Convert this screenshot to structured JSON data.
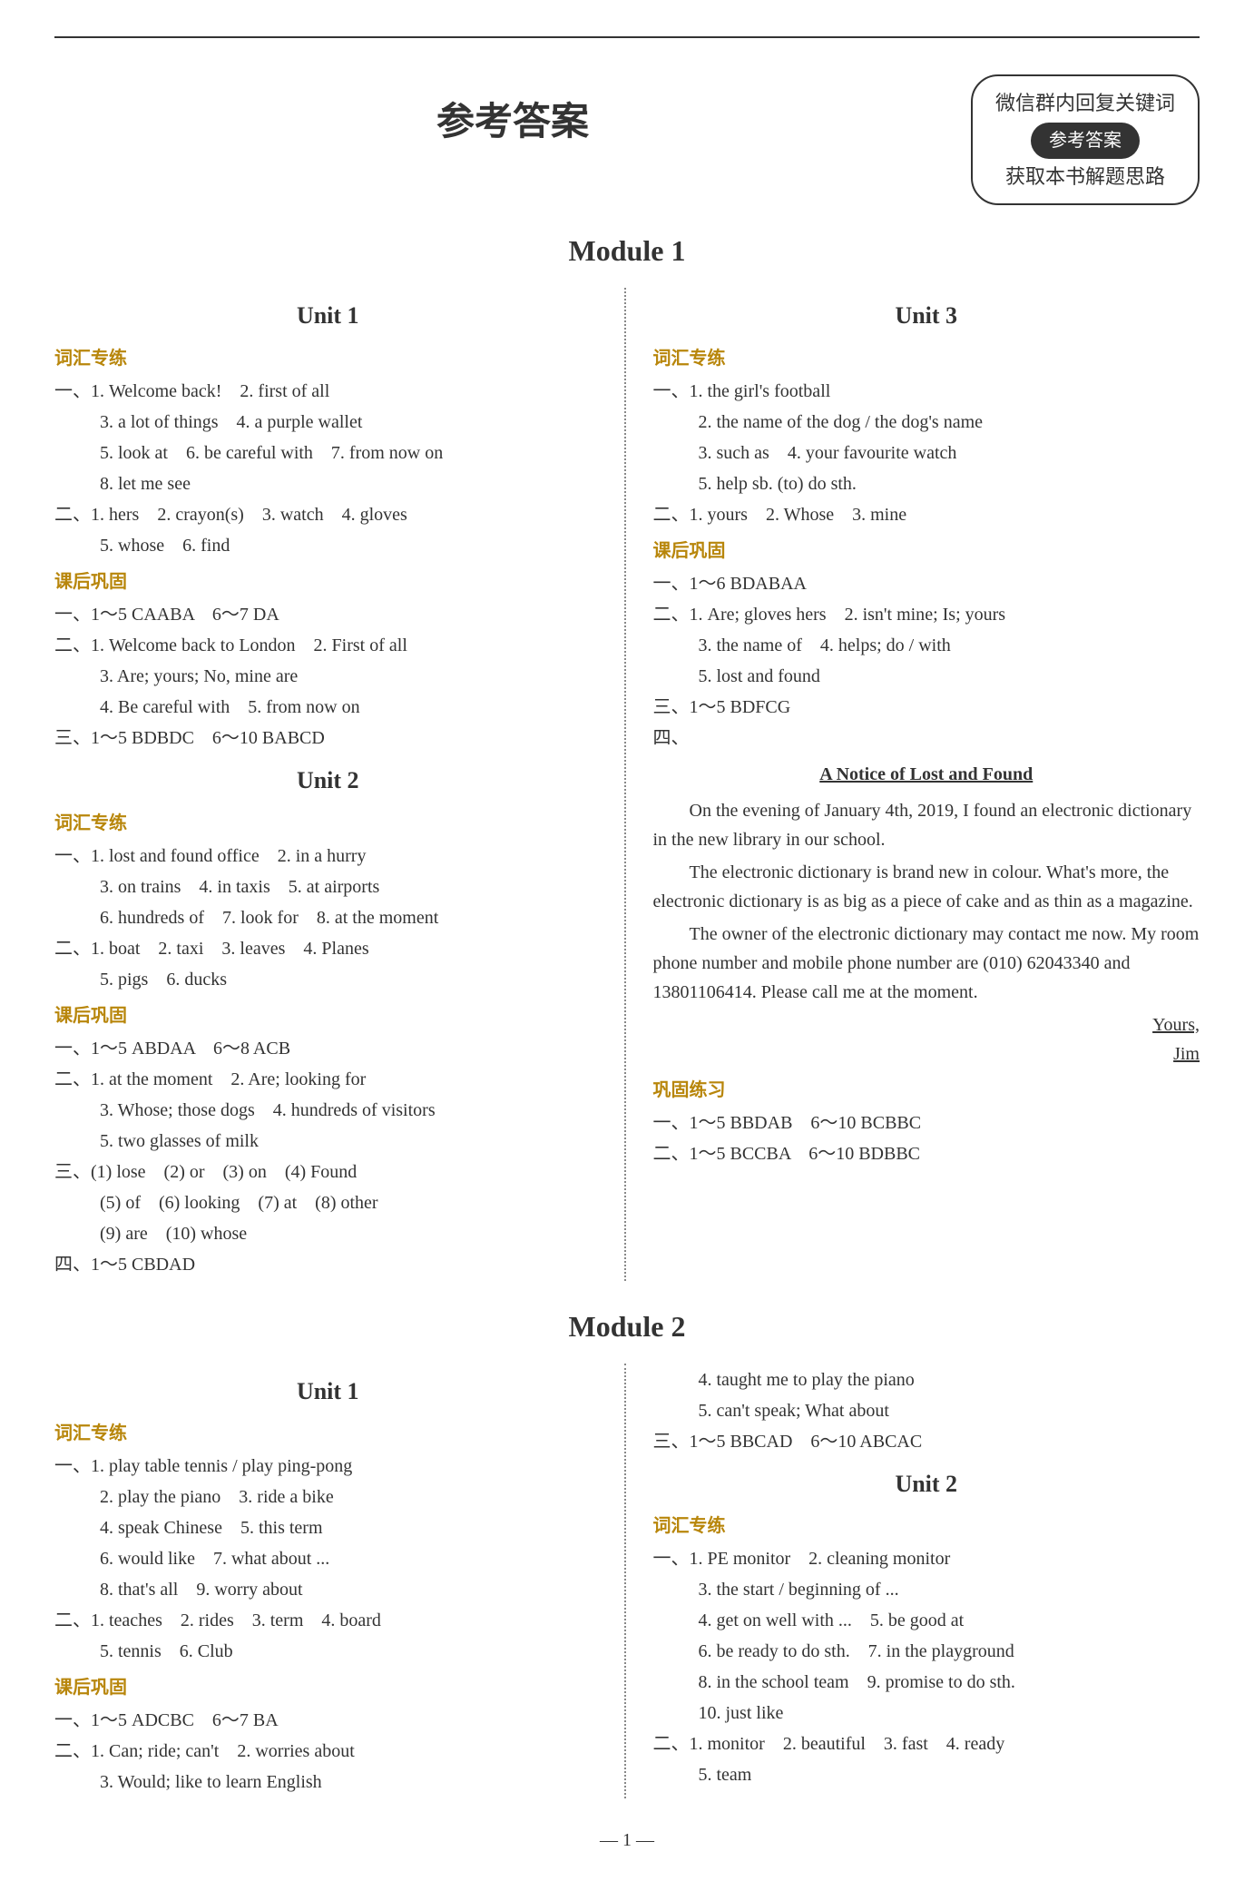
{
  "page": {
    "title": "参考答案",
    "info_line1": "微信群内回复关键词",
    "info_badge": "参考答案",
    "info_line2": "获取本书解题思路",
    "page_number": "— 1 —"
  },
  "module1": {
    "title": "Module 1",
    "unit1": {
      "title": "Unit 1",
      "vocab_label": "词汇专练",
      "vocab1_prefix": "一、",
      "vocab1_lines": [
        "1. Welcome back!　2. first of all",
        "3. a lot of things　4. a purple wallet",
        "5. look at　6. be careful with　7. from now on",
        "8. let me see"
      ],
      "vocab2_prefix": "二、",
      "vocab2_lines": [
        "1. hers　2. crayon(s)　3. watch　4. gloves",
        "5. whose　6. find"
      ],
      "review_label": "课后巩固",
      "r1_prefix": "一、",
      "r1_line": "1～5 CAABA　6～7 DA",
      "r2_prefix": "二、",
      "r2_lines": [
        "1. Welcome back to London　2. First of all",
        "3. Are; yours; No, mine are",
        "4. Be careful with　5. from now on"
      ],
      "r3_prefix": "三、",
      "r3_line": "1～5 BDBDC　6～10 BABCD"
    },
    "unit2": {
      "title": "Unit 2",
      "vocab_label": "词汇专练",
      "v1_prefix": "一、",
      "v1_lines": [
        "1. lost and found office　2. in a hurry",
        "3. on trains　4. in taxis　5. at airports",
        "6. hundreds of　7. look for　8. at the moment"
      ],
      "v2_prefix": "二、",
      "v2_lines": [
        "1. boat　2. taxi　3. leaves　4. Planes",
        "5. pigs　6. ducks"
      ],
      "review_label": "课后巩固",
      "r1_prefix": "一、",
      "r1_line": "1～5 ABDAA　6～8 ACB",
      "r2_prefix": "二、",
      "r2_lines": [
        "1. at the moment　2. Are; looking for",
        "3. Whose; those dogs　4. hundreds of visitors",
        "5. two glasses of milk"
      ],
      "r3_prefix": "三、",
      "r3_lines": [
        "(1) lose　(2) or　(3) on　(4) Found",
        "(5) of　(6) looking　(7) at　(8) other",
        "(9) are　(10) whose"
      ],
      "r4_prefix": "四、",
      "r4_line": "1～5 CBDAD"
    },
    "unit3": {
      "title": "Unit 3",
      "vocab_label": "词汇专练",
      "v1_prefix": "一、",
      "v1_lines": [
        "1. the girl's football",
        "2. the name of the dog / the dog's name",
        "3. such as　4. your favourite watch",
        "5. help sb. (to) do sth."
      ],
      "v2_prefix": "二、",
      "v2_line": "1. yours　2. Whose　3. mine",
      "review_label": "课后巩固",
      "r1_prefix": "一、",
      "r1_line": "1～6 BDABAA",
      "r2_prefix": "二、",
      "r2_lines": [
        "1. Are; gloves hers　2. isn't mine; Is; yours",
        "3. the name of　4. helps; do / with",
        "5. lost and found"
      ],
      "r3_prefix": "三、",
      "r3_line": "1～5 BDFCG",
      "r4_prefix": "四、",
      "essay_title": "A Notice of Lost and Found",
      "essay_p1": "On the evening of January 4th, 2019, I found an electronic dictionary in the new library in our school.",
      "essay_p2": "The electronic dictionary is brand new in colour. What's more, the electronic dictionary is as big as a piece of cake and as thin as a magazine.",
      "essay_p3": "The owner of the electronic dictionary may contact me now. My room phone number and mobile phone number are (010) 62043340 and 13801106414. Please call me at the moment.",
      "essay_sign1": "Yours,",
      "essay_sign2": "Jim",
      "practice_label": "巩固练习",
      "p1_prefix": "一、",
      "p1_line": "1～5 BBDAB　6～10 BCBBC",
      "p2_prefix": "二、",
      "p2_line": "1～5 BCCBA　6～10 BDBBC"
    }
  },
  "module2": {
    "title": "Module 2",
    "left": {
      "unit1_title": "Unit 1",
      "vocab_label": "词汇专练",
      "v1_prefix": "一、",
      "v1_lines": [
        "1. play table tennis / play ping-pong",
        "2. play the piano　3. ride a bike",
        "4. speak Chinese　5. this term",
        "6. would like　7. what about ...",
        "8. that's all　9. worry about"
      ],
      "v2_prefix": "二、",
      "v2_lines": [
        "1. teaches　2. rides　3. term　4. board",
        "5. tennis　6. Club"
      ],
      "review_label": "课后巩固",
      "r1_prefix": "一、",
      "r1_line": "1～5 ADCBC　6～7 BA",
      "r2_prefix": "二、",
      "r2_lines": [
        "1. Can; ride; can't　2. worries about",
        "3. Would; like to learn English"
      ]
    },
    "right": {
      "cont_lines": [
        "4. taught me to play the piano",
        "5. can't speak; What about"
      ],
      "r3_prefix": "三、",
      "r3_line": "1～5 BBCAD　6～10 ABCAC",
      "unit2_title": "Unit 2",
      "vocab_label": "词汇专练",
      "v1_prefix": "一、",
      "v1_lines": [
        "1. PE monitor　2. cleaning monitor",
        "3. the start / beginning of ...",
        "4. get on well with ...　5. be good at",
        "6. be ready to do sth.　7. in the playground",
        "8. in the school team　9. promise to do sth.",
        "10. just like"
      ],
      "v2_prefix": "二、",
      "v2_lines": [
        "1. monitor　2. beautiful　3. fast　4. ready",
        "5. team"
      ]
    }
  }
}
